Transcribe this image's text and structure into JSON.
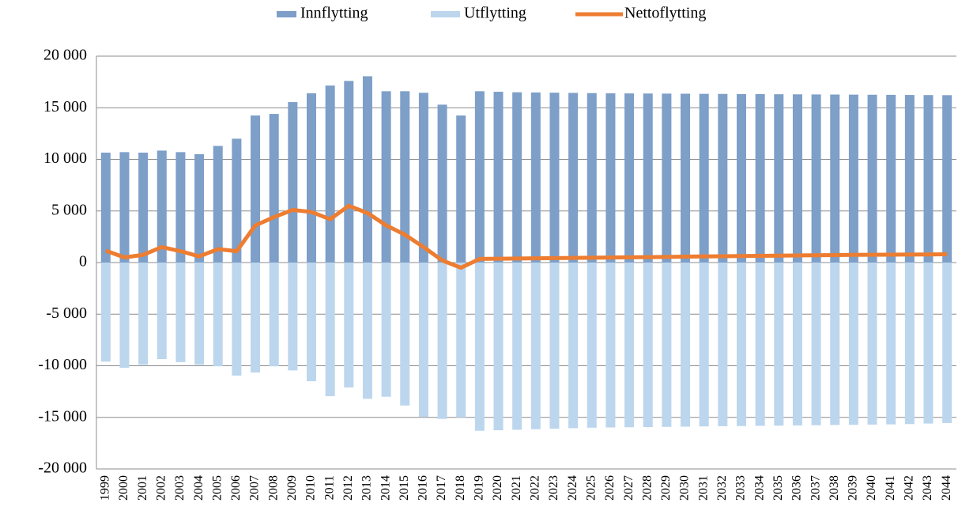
{
  "chart_data": {
    "type": "bar_line",
    "categories": [
      "1999",
      "2000",
      "2001",
      "2002",
      "2003",
      "2004",
      "2005",
      "2006",
      "2007",
      "2008",
      "2009",
      "2010",
      "2011",
      "2012",
      "2013",
      "2014",
      "2015",
      "2016",
      "2017",
      "2018",
      "2019",
      "2020",
      "2021",
      "2022",
      "2023",
      "2024",
      "2025",
      "2026",
      "2027",
      "2028",
      "2029",
      "2030",
      "2031",
      "2032",
      "2033",
      "2034",
      "2035",
      "2036",
      "2037",
      "2038",
      "2039",
      "2040",
      "2041",
      "2042",
      "2043",
      "2044"
    ],
    "series": [
      {
        "name": "Innflytting",
        "type": "bar",
        "color": "#7d9fc8",
        "values": [
          10650,
          10700,
          10650,
          10850,
          10700,
          10500,
          11300,
          12000,
          14250,
          14400,
          15550,
          16400,
          17150,
          17600,
          18050,
          16600,
          16600,
          16450,
          15300,
          14250,
          16600,
          16550,
          16500,
          16480,
          16460,
          16440,
          16420,
          16400,
          16390,
          16380,
          16370,
          16360,
          16350,
          16340,
          16330,
          16320,
          16310,
          16300,
          16290,
          16280,
          16270,
          16260,
          16250,
          16240,
          16230,
          16220
        ]
      },
      {
        "name": "Utflytting",
        "type": "bar",
        "color": "#bcd6ee",
        "values": [
          -9600,
          -10200,
          -9900,
          -9350,
          -9650,
          -9900,
          -10050,
          -10950,
          -10650,
          -10050,
          -10450,
          -11500,
          -12950,
          -12100,
          -13200,
          -13000,
          -13850,
          -14950,
          -15150,
          -15000,
          -16300,
          -16250,
          -16200,
          -16150,
          -16100,
          -16050,
          -16000,
          -15980,
          -15960,
          -15940,
          -15920,
          -15900,
          -15880,
          -15860,
          -15840,
          -15820,
          -15800,
          -15780,
          -15760,
          -15740,
          -15720,
          -15700,
          -15680,
          -15650,
          -15600,
          -15550
        ]
      },
      {
        "name": "Nettoflytting",
        "type": "line",
        "color": "#ed7d31",
        "values": [
          1150,
          500,
          750,
          1500,
          1100,
          600,
          1300,
          1100,
          3600,
          4400,
          5100,
          4900,
          4200,
          5500,
          4800,
          3600,
          2700,
          1500,
          200,
          -500,
          350,
          370,
          390,
          410,
          430,
          450,
          470,
          490,
          510,
          530,
          550,
          570,
          590,
          610,
          630,
          650,
          670,
          690,
          710,
          730,
          750,
          760,
          770,
          780,
          790,
          800
        ]
      }
    ],
    "ylim": [
      -20000,
      20000
    ],
    "yticks": [
      {
        "value": -20000,
        "label": "-20 000"
      },
      {
        "value": -15000,
        "label": "-15 000"
      },
      {
        "value": -10000,
        "label": "-10 000"
      },
      {
        "value": -5000,
        "label": "-5 000"
      },
      0,
      {
        "value": 5000,
        "label": "5 000"
      },
      {
        "value": 10000,
        "label": "10 000"
      },
      {
        "value": 15000,
        "label": "15 000"
      },
      {
        "value": 20000,
        "label": "20 000"
      }
    ],
    "negative_tick_color": "#ff0000",
    "grid": true,
    "legend": "top"
  }
}
